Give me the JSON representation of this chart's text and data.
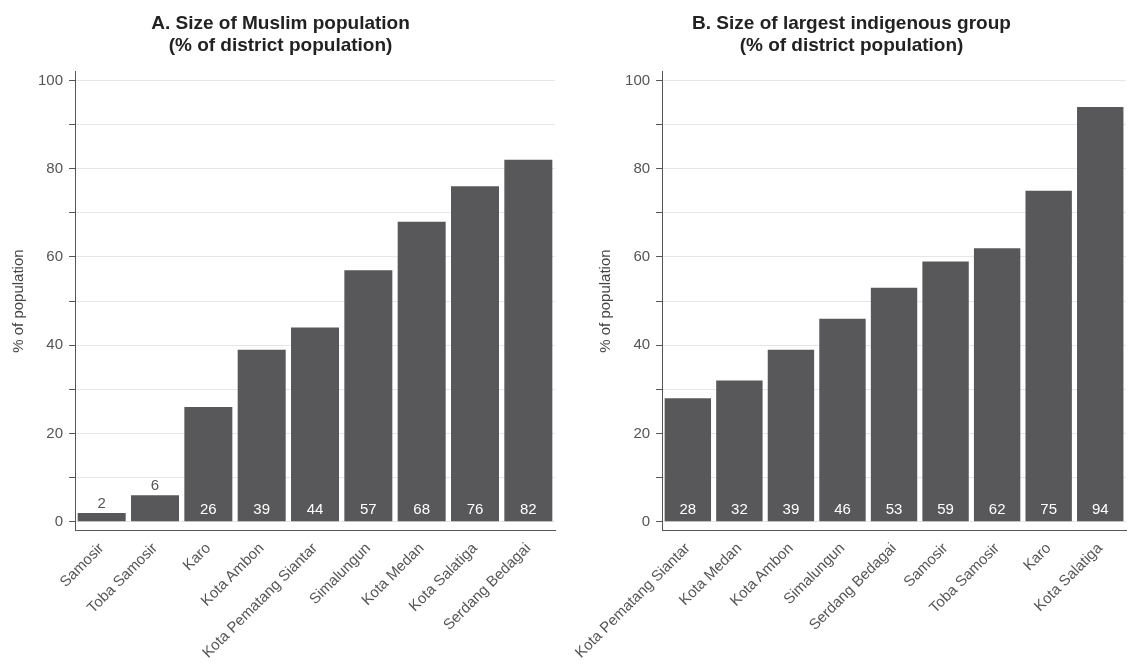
{
  "chart_data": [
    {
      "type": "bar",
      "title": "A. Size of Muslim population\n(% of district population)",
      "ylabel": "% of population",
      "categories": [
        "Samosir",
        "Toba Samosir",
        "Karo",
        "Kota Ambon",
        "Kota Pematang Siantar",
        "Simalungun",
        "Kota Medan",
        "Kota Salatiga",
        "Serdang Bedagai"
      ],
      "values": [
        2,
        6,
        26,
        39,
        44,
        57,
        68,
        76,
        82
      ],
      "color": "#58585a",
      "data_labels": true,
      "ylim": [
        -2,
        102
      ],
      "yticks": [
        0,
        {
          "value": 10,
          "label": null
        },
        20,
        {
          "value": 30,
          "label": null
        },
        40,
        {
          "value": 50,
          "label": null
        },
        60,
        {
          "value": 70,
          "label": null
        },
        80,
        {
          "value": 90,
          "label": null
        },
        100
      ],
      "grid": "y",
      "legend": false
    },
    {
      "type": "bar",
      "title": "B. Size of largest indigenous group\n(% of district population)",
      "ylabel": "% of population",
      "categories": [
        "Kota Pematang Siantar",
        "Kota Medan",
        "Kota Ambon",
        "Simalungun",
        "Serdang Bedagai",
        "Samosir",
        "Toba Samosir",
        "Karo",
        "Kota Salatiga"
      ],
      "values": [
        28,
        32,
        39,
        46,
        53,
        59,
        62,
        75,
        94
      ],
      "color": "#58585a",
      "data_labels": true,
      "ylim": [
        -2,
        102
      ],
      "yticks": [
        0,
        {
          "value": 10,
          "label": null
        },
        20,
        {
          "value": 30,
          "label": null
        },
        40,
        {
          "value": 50,
          "label": null
        },
        60,
        {
          "value": 70,
          "label": null
        },
        80,
        {
          "value": 90,
          "label": null
        },
        100
      ],
      "grid": "y",
      "legend": false
    }
  ]
}
